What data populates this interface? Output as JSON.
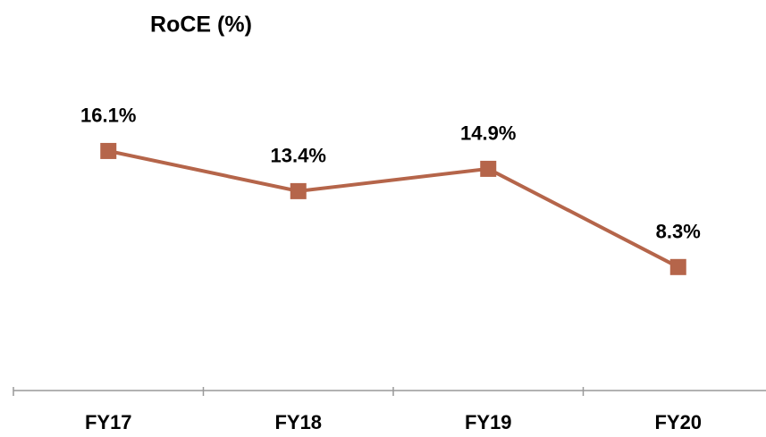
{
  "chart_data": {
    "type": "line",
    "title": "RoCE (%)",
    "categories": [
      "FY17",
      "FY18",
      "FY19",
      "FY20"
    ],
    "values": [
      16.1,
      13.4,
      14.9,
      8.3
    ],
    "value_labels": [
      "16.1%",
      "13.4%",
      "14.9%",
      "8.3%"
    ],
    "color": "#b5654a",
    "ylim": [
      0,
      20
    ]
  }
}
